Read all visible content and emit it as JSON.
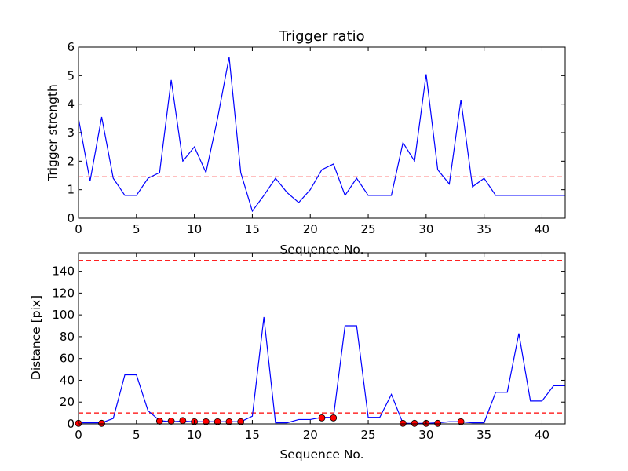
{
  "chart_data": [
    {
      "type": "line",
      "title": "Trigger ratio",
      "xlabel": "Sequence No.",
      "ylabel": "Trigger strength",
      "xlim": [
        0,
        42
      ],
      "ylim": [
        0,
        6
      ],
      "xticks": [
        "0",
        "5",
        "10",
        "15",
        "20",
        "25",
        "30",
        "35",
        "40"
      ],
      "yticks": [
        "0",
        "1",
        "2",
        "3",
        "4",
        "5",
        "6"
      ],
      "grid": false,
      "series": [
        {
          "color": "#0000ff",
          "style": "solid",
          "x": [
            0,
            1,
            2,
            3,
            4,
            5,
            6,
            7,
            8,
            9,
            10,
            11,
            12,
            13,
            14,
            15,
            16,
            17,
            18,
            19,
            20,
            21,
            22,
            23,
            24,
            25,
            26,
            27,
            28,
            29,
            30,
            31,
            32,
            33,
            34,
            35,
            36,
            37,
            38,
            39,
            40,
            41,
            42
          ],
          "values": [
            3.5,
            1.3,
            3.55,
            1.4,
            0.8,
            0.8,
            1.4,
            1.6,
            4.85,
            2.0,
            2.5,
            1.6,
            3.5,
            5.65,
            1.6,
            0.25,
            0.8,
            1.4,
            0.9,
            0.55,
            1.0,
            1.7,
            1.9,
            0.8,
            1.4,
            0.8,
            0.8,
            0.8,
            2.65,
            2.0,
            5.05,
            1.7,
            1.2,
            4.15,
            1.1,
            1.4,
            0.8,
            0.8,
            0.8,
            0.8,
            0.8,
            0.8,
            0.8
          ]
        }
      ],
      "thresholds": [
        {
          "y": 1.45,
          "color": "#ff0000",
          "style": "dashed"
        }
      ]
    },
    {
      "type": "line",
      "title": "",
      "xlabel": "Sequence No.",
      "ylabel": "Distance [pix]",
      "xlim": [
        0,
        42
      ],
      "ylim": [
        0,
        157
      ],
      "xticks": [
        "0",
        "5",
        "10",
        "15",
        "20",
        "25",
        "30",
        "35",
        "40"
      ],
      "yticks": [
        "0",
        "20",
        "40",
        "60",
        "80",
        "100",
        "120",
        "140"
      ],
      "grid": false,
      "series": [
        {
          "color": "#0000ff",
          "style": "solid",
          "x": [
            0,
            1,
            2,
            3,
            4,
            5,
            6,
            7,
            8,
            9,
            10,
            11,
            12,
            13,
            14,
            15,
            16,
            17,
            18,
            19,
            20,
            21,
            22,
            23,
            24,
            25,
            26,
            27,
            28,
            29,
            30,
            31,
            32,
            33,
            34,
            35,
            36,
            37,
            38,
            39,
            40,
            41,
            42
          ],
          "values": [
            1,
            1,
            1,
            5,
            45,
            45,
            12,
            3,
            2,
            2.5,
            2,
            2,
            2,
            2,
            2,
            7,
            98,
            1,
            1,
            4,
            4,
            6,
            6,
            90,
            90,
            6,
            6,
            27,
            0.5,
            0.5,
            0.5,
            1,
            2,
            2,
            1,
            1,
            29,
            29,
            83,
            21,
            21,
            35,
            35
          ]
        }
      ],
      "markers": {
        "color": "#ff0000",
        "x": [
          0,
          2,
          7,
          8,
          9,
          10,
          11,
          12,
          13,
          14,
          21,
          22,
          28,
          29,
          30,
          31,
          33
        ],
        "values": [
          0.5,
          0.5,
          2.5,
          2.5,
          3,
          2,
          2,
          2,
          2,
          2,
          5.5,
          5.5,
          0.5,
          0.5,
          0.5,
          0.5,
          2
        ]
      },
      "thresholds": [
        {
          "y": 150,
          "color": "#ff0000",
          "style": "dashed"
        },
        {
          "y": 10,
          "color": "#ff0000",
          "style": "dashed"
        }
      ]
    }
  ]
}
